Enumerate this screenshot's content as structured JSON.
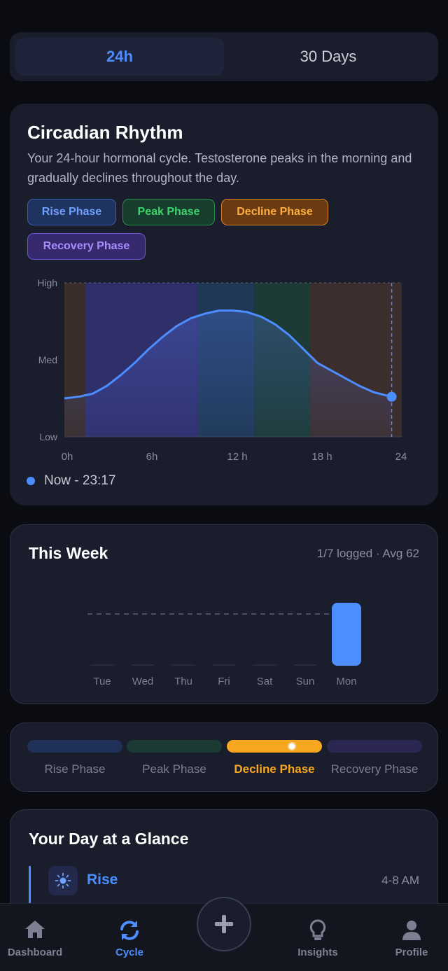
{
  "segmented": {
    "tabs": [
      {
        "label": "24h"
      },
      {
        "label": "30 Days"
      }
    ],
    "active": 0
  },
  "rhythm": {
    "title": "Circadian Rhythm",
    "description": "Your 24-hour hormonal cycle. Testosterone peaks in the morning and gradually declines throughout the day.",
    "chips": [
      "Rise Phase",
      "Peak Phase",
      "Decline Phase",
      "Recovery Phase"
    ],
    "now_label": "Now - 23:17"
  },
  "chart_data": {
    "type": "area",
    "y_tick_labels": [
      "High",
      "Med",
      "Low"
    ],
    "x_tick_labels": [
      "0h",
      "6h",
      "12 h",
      "18 h",
      "24"
    ],
    "xlim": [
      0,
      24
    ],
    "ylim": [
      0,
      1
    ],
    "x": [
      0,
      1,
      2,
      3,
      4,
      5,
      6,
      7,
      8,
      9,
      10,
      11,
      12,
      13,
      14,
      15,
      16,
      17,
      18,
      19,
      20,
      21,
      22,
      23.28
    ],
    "y": [
      0.25,
      0.26,
      0.28,
      0.33,
      0.4,
      0.48,
      0.57,
      0.65,
      0.72,
      0.77,
      0.8,
      0.82,
      0.82,
      0.81,
      0.78,
      0.73,
      0.66,
      0.57,
      0.48,
      0.43,
      0.38,
      0.33,
      0.29,
      0.26
    ],
    "phase_bands": [
      {
        "from": 0,
        "to": 1.5,
        "color": "#3a2d2a"
      },
      {
        "from": 1.5,
        "to": 9.5,
        "color": "#2f2f6a"
      },
      {
        "from": 9.5,
        "to": 13.5,
        "color": "#1f3855"
      },
      {
        "from": 13.5,
        "to": 17.5,
        "color": "#1d3a34"
      },
      {
        "from": 17.5,
        "to": 24,
        "color": "#3d2e2e"
      }
    ],
    "now_x": 23.28
  },
  "week": {
    "title": "This Week",
    "meta": "1/7 logged · Avg 62",
    "chart": {
      "type": "bar",
      "categories": [
        "Tue",
        "Wed",
        "Thu",
        "Fri",
        "Sat",
        "Sun",
        "Mon"
      ],
      "values": [
        0,
        0,
        0,
        0,
        0,
        0,
        62
      ],
      "avg": 62,
      "ylim": [
        0,
        100
      ]
    }
  },
  "phase_bar": {
    "labels": [
      "Rise Phase",
      "Peak Phase",
      "Decline Phase",
      "Recovery Phase"
    ],
    "active": 2
  },
  "glance": {
    "title": "Your Day at a Glance",
    "item_title": "Rise",
    "item_time": "4-8 AM",
    "icon": "sun-icon"
  },
  "tabs": [
    {
      "label": "Dashboard",
      "icon": "home-icon"
    },
    {
      "label": "Cycle",
      "icon": "refresh-icon"
    },
    {
      "label": "Insights",
      "icon": "lightbulb-icon"
    },
    {
      "label": "Profile",
      "icon": "user-icon"
    }
  ],
  "colors": {
    "accent": "#4c8dff",
    "decline": "#f6a71f",
    "bg": "#1a1d2c"
  }
}
